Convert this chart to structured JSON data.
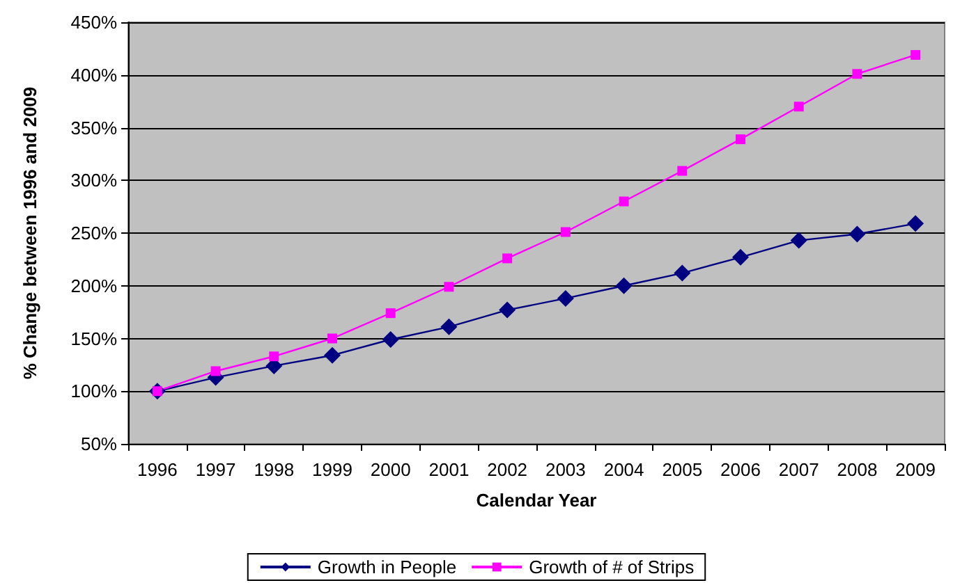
{
  "chart_data": {
    "type": "line",
    "xlabel": "Calendar Year",
    "ylabel": "% Change between 1996 and 2009",
    "categories": [
      "1996",
      "1997",
      "1998",
      "1999",
      "2000",
      "2001",
      "2002",
      "2003",
      "2004",
      "2005",
      "2006",
      "2007",
      "2008",
      "2009"
    ],
    "series": [
      {
        "name": "Growth in People",
        "color": "#000080",
        "marker": "diamond",
        "values": [
          100,
          113,
          124,
          134,
          149,
          161,
          177,
          188,
          200,
          212,
          227,
          243,
          249,
          259
        ]
      },
      {
        "name": "Growth of # of Strips",
        "color": "#ff00ff",
        "marker": "square",
        "values": [
          100,
          119,
          133,
          150,
          174,
          199,
          226,
          251,
          280,
          309,
          339,
          370,
          401,
          419
        ]
      }
    ],
    "ylim": [
      50,
      450
    ],
    "yticks": [
      {
        "value": 50,
        "label": "50%"
      },
      {
        "value": 100,
        "label": "100%"
      },
      {
        "value": 150,
        "label": "150%"
      },
      {
        "value": 200,
        "label": "200%"
      },
      {
        "value": 250,
        "label": "250%"
      },
      {
        "value": 300,
        "label": "300%"
      },
      {
        "value": 350,
        "label": "350%"
      },
      {
        "value": 400,
        "label": "400%"
      },
      {
        "value": 450,
        "label": "450%"
      }
    ],
    "grid": "y",
    "legend": "bottom",
    "line_style": "solid"
  }
}
